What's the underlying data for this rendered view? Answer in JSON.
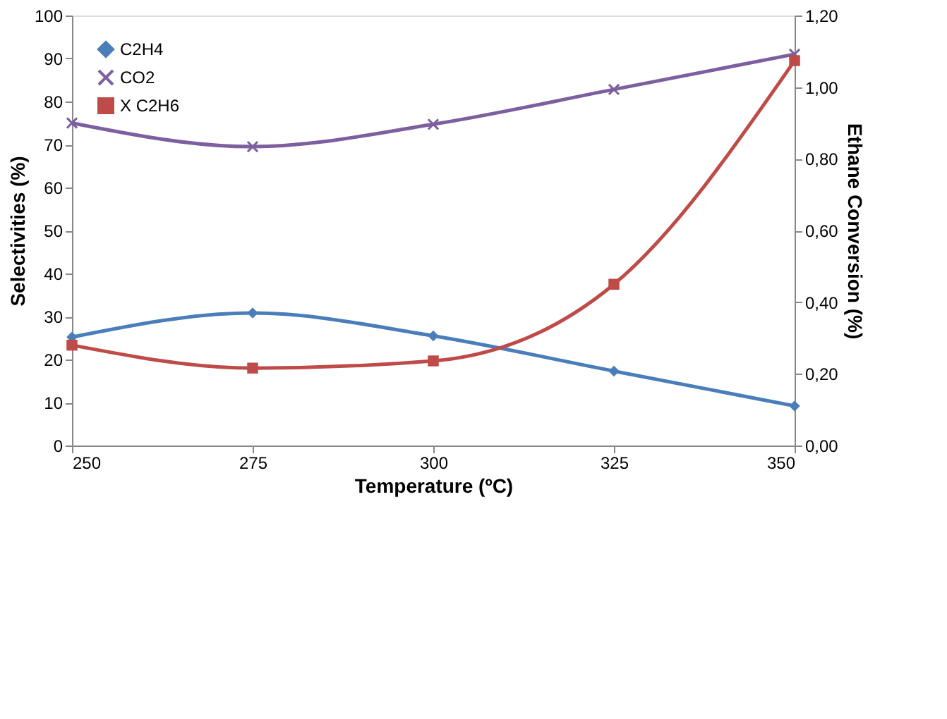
{
  "chart_data": {
    "type": "line",
    "xlabel": "Temperature (ºC)",
    "ylabel": "Selectivities (%)",
    "y2label": "Ethane Conversion (%)",
    "x": [
      250,
      275,
      300,
      325,
      350
    ],
    "xlim": [
      250,
      350
    ],
    "xticks": [
      250,
      275,
      300,
      325,
      350
    ],
    "ylim": [
      0,
      100
    ],
    "yticks": [
      0,
      10,
      20,
      30,
      40,
      50,
      60,
      70,
      80,
      90,
      100
    ],
    "y2lim": [
      0,
      1.2
    ],
    "y2ticks": [
      {
        "value": 0,
        "label": "0,00"
      },
      {
        "value": 0.2,
        "label": "0,20"
      },
      {
        "value": 0.4,
        "label": "0,40"
      },
      {
        "value": 0.6,
        "label": "0,60"
      },
      {
        "value": 0.8,
        "label": "0,80"
      },
      {
        "value": 1.0,
        "label": "1,00"
      },
      {
        "value": 1.2,
        "label": "1,20"
      }
    ],
    "grid": false,
    "legend": "top left",
    "line_style": "solid",
    "series": [
      {
        "name": "C2H4",
        "color": "#4a7ebb",
        "marker": "diamond",
        "values": [
          25.2,
          30.8,
          25.5,
          17.3,
          9.2
        ]
      },
      {
        "name": "CO2",
        "color": "#7d5fa0",
        "marker": "cross",
        "values": [
          75,
          69.5,
          74.7,
          82.8,
          91
        ]
      },
      {
        "name": "X C2H6",
        "color": "#be4b48",
        "marker": "square",
        "axis": "y2",
        "values": [
          0.28,
          0.216,
          0.236,
          0.45,
          1.074
        ]
      }
    ]
  }
}
